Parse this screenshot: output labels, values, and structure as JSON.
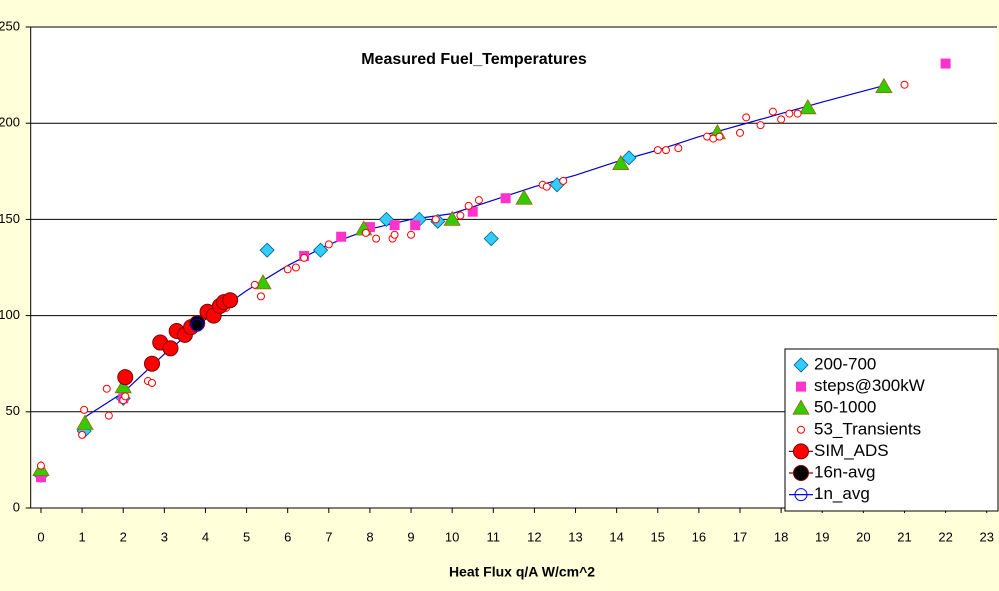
{
  "chart_data": {
    "type": "scatter",
    "title": "Measured Fuel_Temperatures",
    "x_label": "Heat Flux q/A  W/cm^2",
    "xlim": [
      -0.25,
      23.25
    ],
    "ylim": [
      0,
      250
    ],
    "xticks": [
      0,
      1,
      2,
      3,
      4,
      5,
      6,
      7,
      8,
      9,
      10,
      11,
      12,
      13,
      14,
      15,
      16,
      17,
      18,
      19,
      20,
      21,
      22,
      23
    ],
    "yticks": [
      0,
      50,
      100,
      150,
      200,
      250
    ],
    "grid": true,
    "legend": "right",
    "series": [
      {
        "name": "200-700",
        "marker": "diamond",
        "color": "#33ccff",
        "x": [
          0,
          1.05,
          2.0,
          5.5,
          6.8,
          8.4,
          9.2,
          9.65,
          10.95,
          12.55,
          14.3
        ],
        "values": [
          17,
          40,
          57,
          134,
          134,
          150,
          150,
          149,
          140,
          168,
          182
        ]
      },
      {
        "name": "steps@300kW",
        "marker": "square",
        "color": "#ff33cc",
        "x": [
          0,
          2.0,
          6.4,
          7.3,
          8.0,
          8.6,
          9.1,
          10.5,
          11.3,
          22.0
        ],
        "values": [
          16,
          57,
          131,
          141,
          146,
          147,
          147,
          154,
          161,
          231
        ]
      },
      {
        "name": "50-1000",
        "marker": "triangle",
        "color": "#33cc00",
        "x": [
          0,
          1.07,
          2.0,
          5.4,
          7.85,
          10.0,
          11.75,
          14.1,
          16.45,
          18.65,
          20.5
        ],
        "values": [
          20,
          44,
          63,
          117,
          145,
          150,
          161,
          179,
          195,
          208,
          219
        ]
      },
      {
        "name": "53_Transients",
        "marker": "open-circle",
        "color": "#ff0000",
        "x": [
          0,
          1.0,
          1.05,
          1.6,
          1.65,
          2.0,
          2.05,
          2.6,
          2.7,
          4.3,
          4.5,
          5.2,
          5.35,
          6.0,
          6.2,
          6.4,
          7.0,
          7.9,
          8.15,
          8.55,
          8.6,
          9.0,
          9.6,
          10.2,
          10.4,
          10.65,
          12.2,
          12.3,
          12.7,
          15.0,
          15.2,
          15.5,
          16.2,
          16.35,
          16.5,
          17.0,
          17.15,
          17.5,
          17.8,
          18.0,
          18.2,
          18.4,
          21.0
        ],
        "values": [
          22,
          38,
          51,
          62,
          48,
          56,
          58,
          66,
          65,
          101,
          104,
          116,
          110,
          124,
          125,
          130,
          137,
          143,
          140,
          140,
          142,
          142,
          150,
          152,
          157,
          160,
          168,
          167,
          170,
          186,
          186,
          187,
          193,
          192,
          193,
          195,
          203,
          199,
          206,
          202,
          205,
          205,
          220
        ]
      },
      {
        "name": "SIM_ADS",
        "marker": "big-circle",
        "color": "#ff0000",
        "line_color": "#800000",
        "x": [
          2.05,
          2.7,
          2.9,
          3.15,
          3.3,
          3.5,
          3.65,
          4.05,
          4.2,
          4.35,
          4.45,
          4.6
        ],
        "values": [
          68,
          75,
          86,
          83,
          92,
          90,
          94,
          102,
          100,
          105,
          107,
          108
        ]
      },
      {
        "name": "16n-avg",
        "marker": "big-circle",
        "color": "#000000",
        "line_color": "#800000",
        "x": [
          3.8
        ],
        "values": [
          96
        ]
      },
      {
        "name": "1n_avg",
        "marker": "blue-circle",
        "color": "#0000ff",
        "line_color": "#0000ff",
        "x": [
          3.8
        ],
        "values": [
          95
        ]
      },
      {
        "marker": "line",
        "color": "#0000cc",
        "x": [
          1.05,
          2,
          3,
          4,
          5,
          6,
          7,
          8,
          9,
          10,
          11,
          12,
          13,
          14,
          15,
          16,
          17,
          18,
          19,
          20.4
        ],
        "values": [
          47,
          60,
          80,
          98,
          113,
          126,
          137,
          145,
          150,
          153,
          160,
          167,
          173,
          180,
          186,
          193,
          199,
          205,
          211,
          219
        ]
      }
    ]
  }
}
